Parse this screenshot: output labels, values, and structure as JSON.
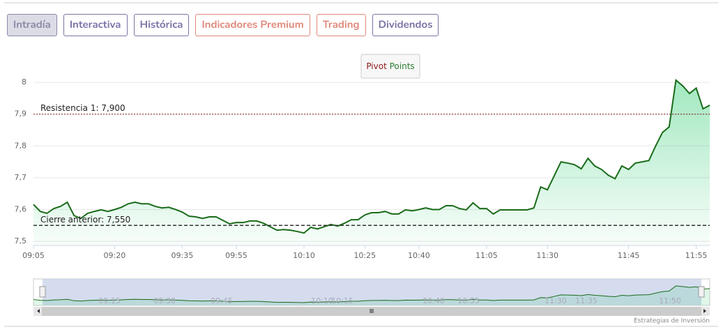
{
  "tabs": [
    {
      "label": "Intradía",
      "color": "#8a8aa8",
      "active": true
    },
    {
      "label": "Interactiva",
      "color": "#7b74a8",
      "active": false
    },
    {
      "label": "Histórica",
      "color": "#7b74a8",
      "active": false
    },
    {
      "label": "Indicadores Premium",
      "color": "#e0887a",
      "active": false
    },
    {
      "label": "Trading",
      "color": "#e0887a",
      "active": false
    },
    {
      "label": "Dividendos",
      "color": "#7b74a8",
      "active": false
    }
  ],
  "pivot_button": {
    "word1": "Pivot",
    "word2": "Points"
  },
  "credit": "Estrategias de Inversión",
  "navigator_labels": [
    "09:15",
    "09:30",
    "09:45",
    "10:10",
    "10:15",
    "10:40",
    "10:55",
    "11:30",
    "11:35",
    "11:50"
  ],
  "chart_data": {
    "type": "area",
    "color": "#1a6b1a",
    "grid": true,
    "categories": [
      "09:05",
      null,
      null,
      null,
      null,
      null,
      null,
      null,
      null,
      null,
      null,
      null,
      "09:20",
      null,
      null,
      null,
      null,
      null,
      null,
      null,
      null,
      null,
      "09:35",
      null,
      null,
      null,
      null,
      null,
      null,
      null,
      "09:55",
      null,
      null,
      null,
      null,
      null,
      null,
      null,
      null,
      null,
      "10:10",
      null,
      null,
      null,
      null,
      null,
      null,
      null,
      null,
      "10:25",
      null,
      null,
      null,
      null,
      null,
      null,
      null,
      "10:40",
      null,
      null,
      null,
      null,
      null,
      null,
      null,
      null,
      null,
      "11:05",
      null,
      null,
      null,
      null,
      null,
      null,
      null,
      null,
      "11:30",
      null,
      null,
      null,
      null,
      null,
      null,
      null,
      null,
      null,
      null,
      null,
      "11:45",
      null,
      null,
      null,
      null,
      null,
      null,
      null,
      null,
      null,
      "11:55",
      null,
      null
    ],
    "values": [
      7.616,
      7.594,
      7.588,
      7.603,
      7.61,
      7.623,
      7.581,
      7.572,
      7.588,
      7.594,
      7.599,
      7.594,
      7.6,
      7.607,
      7.618,
      7.623,
      7.618,
      7.618,
      7.61,
      7.605,
      7.607,
      7.6,
      7.592,
      7.579,
      7.577,
      7.572,
      7.577,
      7.577,
      7.566,
      7.555,
      7.559,
      7.559,
      7.564,
      7.564,
      7.557,
      7.546,
      7.535,
      7.537,
      7.535,
      7.531,
      7.526,
      7.544,
      7.539,
      7.546,
      7.553,
      7.548,
      7.557,
      7.568,
      7.568,
      7.583,
      7.59,
      7.59,
      7.594,
      7.586,
      7.586,
      7.599,
      7.596,
      7.6,
      7.605,
      7.6,
      7.6,
      7.612,
      7.612,
      7.603,
      7.599,
      7.621,
      7.603,
      7.603,
      7.586,
      7.599,
      7.599,
      7.599,
      7.599,
      7.599,
      7.605,
      7.671,
      7.662,
      7.706,
      7.75,
      7.746,
      7.741,
      7.728,
      7.761,
      7.737,
      7.726,
      7.708,
      7.697,
      7.737,
      7.726,
      7.746,
      7.75,
      7.754,
      7.8,
      7.842,
      7.86,
      8.007,
      7.989,
      7.965,
      7.982,
      7.917,
      7.928
    ],
    "ylim": [
      7.487,
      8.088
    ],
    "yticks": [
      {
        "value": 7.5,
        "label": "7,5"
      },
      {
        "value": 7.6,
        "label": "7,6"
      },
      {
        "value": 7.7,
        "label": "7,7"
      },
      {
        "value": 7.8,
        "label": "7,8"
      },
      {
        "value": 7.9,
        "label": "7,9"
      },
      8
    ],
    "plot_lines": [
      {
        "value": 7.9,
        "label": "Resistencia 1: 7,900",
        "color": "#8b1a1a",
        "dash": "2,2"
      },
      {
        "value": 7.55,
        "label": "Cierre anterior: 7,550",
        "color": "#333333",
        "dash": "5,3"
      }
    ]
  }
}
